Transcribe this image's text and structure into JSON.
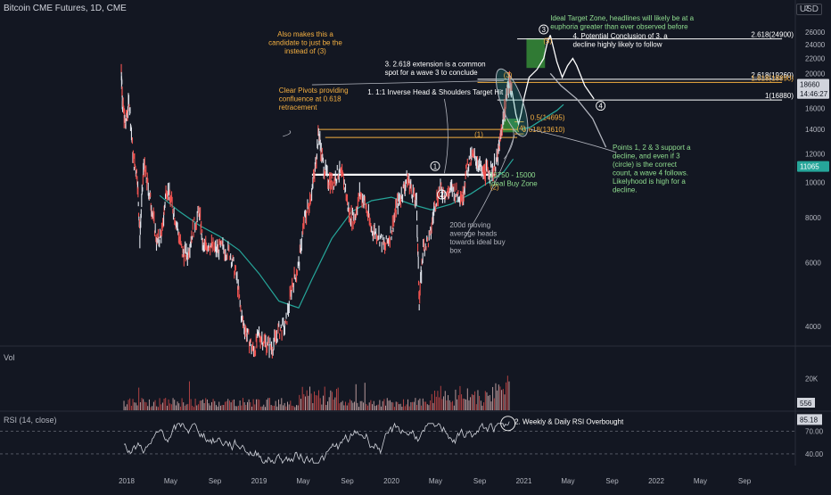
{
  "header": {
    "title": "Bitcoin CME Futures, 1D, CME",
    "currency": "USD"
  },
  "chart_data": {
    "type": "line",
    "title": "Bitcoin CME Futures, 1D, CME",
    "price_axis": {
      "scale": "log",
      "ticks": [
        4000,
        6000,
        8000,
        10000,
        12000,
        14000,
        16000,
        18000,
        20000,
        22000,
        24000,
        26000
      ],
      "tick_labels": [
        "4000",
        "6000",
        "8000",
        "10000",
        "12000",
        "14000",
        "16000",
        "18000",
        "20000",
        "22000",
        "24000",
        "26000"
      ],
      "badges": [
        {
          "value": 18660,
          "label": "18660",
          "color": "#d1d4dc",
          "text": "#131722"
        },
        {
          "value": 17600,
          "label": "14:46:27",
          "color": "#d1d4dc",
          "text": "#131722"
        },
        {
          "value": 11065,
          "label": "11065",
          "color": "#26a69a",
          "text": "#ffffff"
        }
      ],
      "top_label": "2"
    },
    "time_axis": {
      "labels": [
        {
          "t": 2018.0,
          "label": "2018"
        },
        {
          "t": 2018.333,
          "label": "May"
        },
        {
          "t": 2018.667,
          "label": "Sep"
        },
        {
          "t": 2019.0,
          "label": "2019"
        },
        {
          "t": 2019.333,
          "label": "May"
        },
        {
          "t": 2019.667,
          "label": "Sep"
        },
        {
          "t": 2020.0,
          "label": "2020"
        },
        {
          "t": 2020.333,
          "label": "May"
        },
        {
          "t": 2020.667,
          "label": "Sep"
        },
        {
          "t": 2021.0,
          "label": "2021"
        },
        {
          "t": 2021.333,
          "label": "May"
        },
        {
          "t": 2021.667,
          "label": "Sep"
        },
        {
          "t": 2022.0,
          "label": "2022"
        },
        {
          "t": 2022.333,
          "label": "May"
        },
        {
          "t": 2022.667,
          "label": "Sep"
        }
      ]
    },
    "price_series": {
      "name": "",
      "points": [
        [
          2017.96,
          20600
        ],
        [
          2017.97,
          16500
        ],
        [
          2017.99,
          14400
        ],
        [
          2018.02,
          16800
        ],
        [
          2018.05,
          11600
        ],
        [
          2018.08,
          10500
        ],
        [
          2018.1,
          7100
        ],
        [
          2018.13,
          11200
        ],
        [
          2018.16,
          9800
        ],
        [
          2018.19,
          8500
        ],
        [
          2018.23,
          6800
        ],
        [
          2018.27,
          7300
        ],
        [
          2018.3,
          9700
        ],
        [
          2018.34,
          8800
        ],
        [
          2018.38,
          7600
        ],
        [
          2018.42,
          6400
        ],
        [
          2018.46,
          6300
        ],
        [
          2018.5,
          7400
        ],
        [
          2018.55,
          8300
        ],
        [
          2018.58,
          6500
        ],
        [
          2018.62,
          6800
        ],
        [
          2018.67,
          6500
        ],
        [
          2018.72,
          6600
        ],
        [
          2018.78,
          6400
        ],
        [
          2018.83,
          5500
        ],
        [
          2018.87,
          4200
        ],
        [
          2018.91,
          3800
        ],
        [
          2018.96,
          3400
        ],
        [
          2019.0,
          3800
        ],
        [
          2019.05,
          3600
        ],
        [
          2019.1,
          3500
        ],
        [
          2019.15,
          3900
        ],
        [
          2019.2,
          4000
        ],
        [
          2019.25,
          5200
        ],
        [
          2019.3,
          5900
        ],
        [
          2019.34,
          7800
        ],
        [
          2019.38,
          8800
        ],
        [
          2019.42,
          10500
        ],
        [
          2019.45,
          13800
        ],
        [
          2019.48,
          11400
        ],
        [
          2019.52,
          10200
        ],
        [
          2019.56,
          10000
        ],
        [
          2019.6,
          10700
        ],
        [
          2019.64,
          10200
        ],
        [
          2019.68,
          8200
        ],
        [
          2019.72,
          7900
        ],
        [
          2019.76,
          9300
        ],
        [
          2019.8,
          8800
        ],
        [
          2019.85,
          7400
        ],
        [
          2019.9,
          7200
        ],
        [
          2019.95,
          6600
        ],
        [
          2020.0,
          7300
        ],
        [
          2020.04,
          8600
        ],
        [
          2020.08,
          9300
        ],
        [
          2020.12,
          10300
        ],
        [
          2020.15,
          9600
        ],
        [
          2020.19,
          8700
        ],
        [
          2020.21,
          4700
        ],
        [
          2020.24,
          6600
        ],
        [
          2020.29,
          7000
        ],
        [
          2020.33,
          8800
        ],
        [
          2020.37,
          9600
        ],
        [
          2020.42,
          9300
        ],
        [
          2020.46,
          9600
        ],
        [
          2020.5,
          9300
        ],
        [
          2020.54,
          9200
        ],
        [
          2020.57,
          11000
        ],
        [
          2020.61,
          11800
        ],
        [
          2020.65,
          11500
        ],
        [
          2020.69,
          10500
        ],
        [
          2020.72,
          10800
        ],
        [
          2020.76,
          10800
        ],
        [
          2020.8,
          11500
        ],
        [
          2020.82,
          13000
        ],
        [
          2020.85,
          15400
        ],
        [
          2020.88,
          18500
        ],
        [
          2020.895,
          18800
        ],
        [
          2020.91,
          17900
        ]
      ]
    },
    "ma_series": {
      "name": "",
      "points": [
        [
          2018.25,
          9200
        ],
        [
          2018.4,
          8300
        ],
        [
          2018.55,
          7600
        ],
        [
          2018.7,
          7100
        ],
        [
          2018.85,
          6500
        ],
        [
          2019.0,
          5600
        ],
        [
          2019.15,
          4700
        ],
        [
          2019.3,
          4500
        ],
        [
          2019.4,
          5400
        ],
        [
          2019.55,
          7000
        ],
        [
          2019.7,
          8300
        ],
        [
          2019.85,
          8900
        ],
        [
          2020.0,
          9100
        ],
        [
          2020.15,
          8700
        ],
        [
          2020.3,
          8400
        ],
        [
          2020.45,
          8700
        ],
        [
          2020.6,
          9300
        ],
        [
          2020.75,
          10100
        ],
        [
          2020.85,
          10700
        ],
        [
          2020.92,
          11600
        ]
      ]
    },
    "projections": [
      {
        "name": "",
        "color": "#ffffff",
        "points": [
          [
            2020.91,
            17900
          ],
          [
            2020.94,
            15400
          ],
          [
            2020.96,
            14500
          ],
          [
            2020.98,
            15500
          ],
          [
            2021.0,
            17000
          ],
          [
            2021.04,
            19500
          ],
          [
            2021.1,
            20500
          ],
          [
            2021.15,
            22000
          ],
          [
            2021.18,
            24500
          ],
          [
            2021.2,
            25500
          ]
        ]
      },
      {
        "name": "",
        "color": "#ffffff",
        "points": [
          [
            2021.2,
            25500
          ],
          [
            2021.25,
            21500
          ],
          [
            2021.29,
            19500
          ],
          [
            2021.33,
            21000
          ],
          [
            2021.37,
            22000
          ],
          [
            2021.4,
            21000
          ],
          [
            2021.46,
            18500
          ],
          [
            2021.53,
            17000
          ]
        ]
      },
      {
        "name": "",
        "color": "#26a69a",
        "points": [
          [
            2020.98,
            14000
          ],
          [
            2021.05,
            14200
          ],
          [
            2021.15,
            15000
          ],
          [
            2021.25,
            15800
          ],
          [
            2021.3,
            16400
          ]
        ]
      },
      {
        "name": "",
        "color": "#b2b5be",
        "points": [
          [
            2021.2,
            20000
          ],
          [
            2021.28,
            18500
          ],
          [
            2021.4,
            17000
          ],
          [
            2021.52,
            15000
          ],
          [
            2021.62,
            12500
          ]
        ]
      }
    ],
    "levels": [
      {
        "value": 24900,
        "label": "2.618(24900)",
        "color": "#ffffff",
        "t0": 2020.95,
        "t1": 2022.95
      },
      {
        "value": 19260,
        "label": "2.618(19260)",
        "color": "#ffffff",
        "t0": 2020.65,
        "t1": 2022.95
      },
      {
        "value": 18890,
        "label": "1.618(18890)",
        "color": "#f5b041",
        "t0": 2020.65,
        "t1": 2022.95
      },
      {
        "value": 16880,
        "label": "1(16880)",
        "color": "#ffffff",
        "t0": 2020.8,
        "t1": 2022.95
      },
      {
        "value": 14695,
        "label": "0.5(14695)",
        "color": "#f5b041",
        "t0": 2020.93,
        "t1": 2021.0
      },
      {
        "value": 13610,
        "label": "0.618(13610)",
        "color": "#f5b041",
        "t0": 2020.93,
        "t1": 2021.0
      }
    ],
    "hs_neckline": {
      "value": 10500,
      "t0": 2019.4,
      "t1": 2020.78,
      "color": "#ffffff"
    },
    "pivot_lines": [
      {
        "value": 14000,
        "t0": 2019.45,
        "t1": 2020.95,
        "color": "#f5b041"
      },
      {
        "value": 13300,
        "t0": 2019.5,
        "t1": 2020.95,
        "color": "#f5b041"
      }
    ],
    "zones": [
      {
        "label": "",
        "t0": 2021.02,
        "t1": 2021.16,
        "y0": 20700,
        "y1": 25000,
        "color": "#3b9c3b"
      },
      {
        "label": "",
        "t0": 2020.84,
        "t1": 2020.96,
        "y0": 13750,
        "y1": 15000,
        "color": "#3b9c3b"
      }
    ],
    "wave_labels": [
      {
        "t": 2020.88,
        "y": 19450,
        "label": "(3)",
        "color": "#f5b041"
      },
      {
        "t": 2020.66,
        "y": 13350,
        "label": "(1)",
        "color": "#f5b041"
      },
      {
        "t": 2020.78,
        "y": 9550,
        "label": "(2)",
        "color": "#f5b041"
      },
      {
        "t": 2021.18,
        "y": 24200,
        "label": "(5)",
        "color": "#f5b041"
      },
      {
        "t": 2020.98,
        "y": 13900,
        "label": "(4)",
        "color": "#f5b041"
      },
      {
        "t": 2020.33,
        "y": 10900,
        "label": "1",
        "color": "#ffffff",
        "circled": true
      },
      {
        "t": 2020.38,
        "y": 9100,
        "label": "2",
        "color": "#ffffff",
        "circled": true
      },
      {
        "t": 2021.15,
        "y": 26000,
        "label": "3",
        "color": "#ffffff",
        "circled": true
      },
      {
        "t": 2021.58,
        "y": 16000,
        "label": "4",
        "color": "#ffffff",
        "circled": true
      }
    ],
    "annotations": [
      {
        "t": 2019.35,
        "y": 25300,
        "lines": [
          "Also makes this a",
          "candidate to just be the",
          "instead of (3)"
        ],
        "color": "#f5b041",
        "anchor": "middle"
      },
      {
        "t": 2019.15,
        "y": 17700,
        "lines": [
          "Clear Pivots providing",
          "confluence at 0.618",
          "retracement"
        ],
        "color": "#f5b041",
        "anchor": "start"
      },
      {
        "t": 2019.95,
        "y": 20900,
        "lines": [
          "3. 2.618 extension is a common",
          "spot for a wave 3 to conclude"
        ],
        "color": "#ffffff",
        "anchor": "start"
      },
      {
        "t": 2019.82,
        "y": 17500,
        "lines": [
          "1. 1:1 Inverse Head & Shoulders Target Hit"
        ],
        "color": "#ffffff",
        "anchor": "start"
      },
      {
        "t": 2021.2,
        "y": 28000,
        "lines": [
          "Ideal Target Zone, headlines will likely be at a",
          "euphoria greater than ever observed before"
        ],
        "color": "#8fdd8f",
        "anchor": "start"
      },
      {
        "t": 2021.37,
        "y": 25000,
        "lines": [
          "4. Potential Conclusion of 3, a",
          "decline highly likely to follow"
        ],
        "color": "#ffffff",
        "anchor": "start"
      },
      {
        "t": 2020.74,
        "y": 10300,
        "lines": [
          "13750 - 15000",
          "Ideal Buy Zone"
        ],
        "color": "#8fdd8f",
        "anchor": "start"
      },
      {
        "t": 2020.44,
        "y": 7500,
        "lines": [
          "200d moving",
          "average heads",
          "towards ideal buy",
          "box"
        ],
        "color": "#b2b5be",
        "anchor": "start"
      },
      {
        "t": 2021.67,
        "y": 12300,
        "lines": [
          "Points 1, 2 & 3 support a",
          "decline, and even if 3",
          "(circle) is the correct",
          "count, a wave 4 follows.",
          "Likelyhood is high for a",
          "decline."
        ],
        "color": "#8fdd8f",
        "anchor": "start"
      }
    ],
    "volume": {
      "label": "Vol",
      "ticks": [
        {
          "v": 20000,
          "label": "20K"
        }
      ],
      "last": "556",
      "max": 35000
    },
    "rsi": {
      "label": "RSI (14, close)",
      "ticks": [
        {
          "v": 70,
          "label": "70.00"
        },
        {
          "v": 40,
          "label": "40.00"
        }
      ],
      "last": "85.18",
      "annotation": "2. Weekly & Daily RSI Overbought",
      "ylim": [
        20,
        95
      ]
    }
  }
}
